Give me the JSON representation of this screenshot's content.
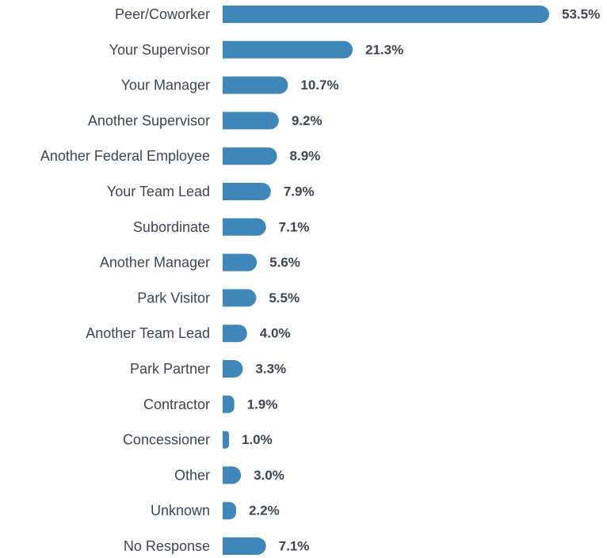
{
  "chart_data": {
    "type": "bar",
    "orientation": "horizontal",
    "categories": [
      "Peer/Coworker",
      "Your Supervisor",
      "Your Manager",
      "Another Supervisor",
      "Another Federal Employee",
      "Your Team Lead",
      "Subordinate",
      "Another Manager",
      "Park Visitor",
      "Another Team Lead",
      "Park Partner",
      "Contractor",
      "Concessioner",
      "Other",
      "Unknown",
      "No Response"
    ],
    "values": [
      53.5,
      21.3,
      10.7,
      9.2,
      8.9,
      7.9,
      7.1,
      5.6,
      5.5,
      4.0,
      3.3,
      1.9,
      1.0,
      3.0,
      2.2,
      7.1
    ],
    "value_labels": [
      "53.5%",
      "21.3%",
      "10.7%",
      "9.2%",
      "8.9%",
      "7.9%",
      "7.1%",
      "5.6%",
      "5.5%",
      "4.0%",
      "3.3%",
      "1.9%",
      "1.0%",
      "3.0%",
      "2.2%",
      "7.1%"
    ],
    "xlim": [
      0,
      53.5
    ],
    "grid": false,
    "legend": "none",
    "bar_color": "#3f87b8",
    "text_color": "#3f4650"
  }
}
